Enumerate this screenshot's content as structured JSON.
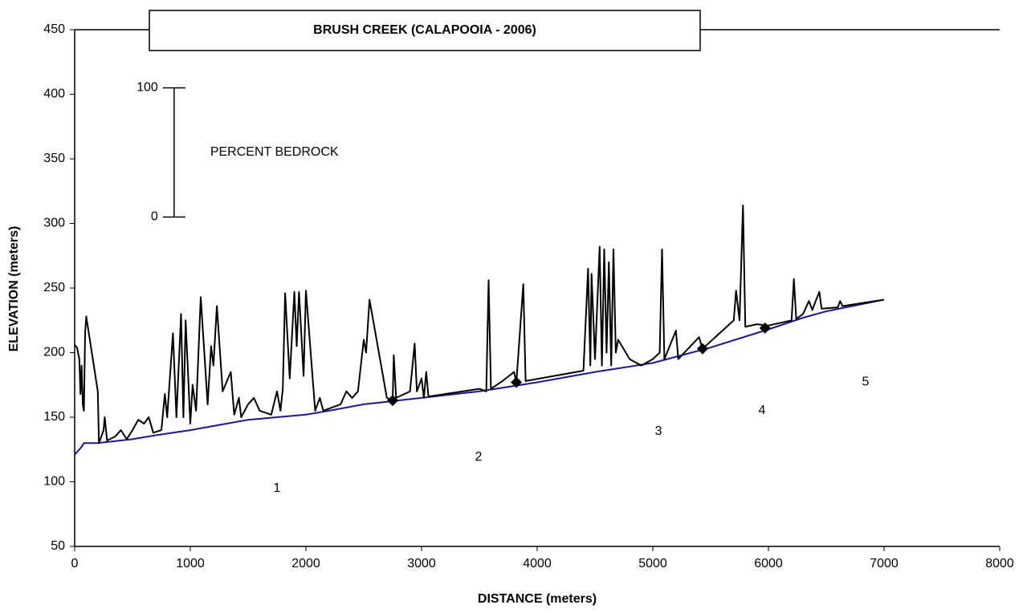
{
  "chart_data": {
    "type": "line",
    "title": "BRUSH CREEK (CALAPOOIA - 2006)",
    "xlabel": "DISTANCE (meters)",
    "ylabel": "ELEVATION (meters)",
    "xlim": [
      0,
      8000
    ],
    "xticks": [
      0,
      1000,
      2000,
      3000,
      4000,
      5000,
      6000,
      7000,
      8000
    ],
    "ylim": [
      50,
      450
    ],
    "yticks": [
      50,
      100,
      150,
      200,
      250,
      300,
      350,
      400,
      450
    ],
    "grid": false,
    "series": [
      {
        "color": "#000000",
        "x": [
          0,
          20,
          40,
          50,
          60,
          70,
          80,
          90,
          100,
          200,
          210,
          250,
          260,
          280,
          350,
          400,
          450,
          500,
          550,
          600,
          640,
          680,
          750,
          780,
          800,
          850,
          880,
          920,
          940,
          960,
          1000,
          1020,
          1050,
          1090,
          1150,
          1180,
          1200,
          1230,
          1280,
          1350,
          1380,
          1420,
          1440,
          1500,
          1550,
          1600,
          1700,
          1750,
          1780,
          1800,
          1820,
          1860,
          1900,
          1920,
          1940,
          1980,
          2000,
          2080,
          2120,
          2150,
          2300,
          2350,
          2400,
          2450,
          2500,
          2520,
          2550,
          2700,
          2750,
          2760,
          2780,
          2900,
          2940,
          2960,
          3000,
          3020,
          3040,
          3060,
          3500,
          3560,
          3580,
          3600,
          3700,
          3800,
          3820,
          3880,
          3900,
          4400,
          4440,
          4460,
          4470,
          4500,
          4540,
          4560,
          4580,
          4600,
          4620,
          4640,
          4660,
          4680,
          4700,
          4800,
          4900,
          5000,
          5060,
          5080,
          5100,
          5200,
          5220,
          5400,
          5430,
          5700,
          5720,
          5750,
          5780,
          5800,
          5900,
          6000,
          6200,
          6220,
          6240,
          6300,
          6350,
          6380,
          6400,
          6440,
          6460,
          6600,
          6620,
          6640,
          7000
        ],
        "values": [
          206,
          204,
          195,
          168,
          190,
          160,
          155,
          215,
          228,
          170,
          130,
          140,
          150,
          132,
          135,
          140,
          133,
          140,
          148,
          145,
          150,
          138,
          140,
          168,
          150,
          215,
          150,
          230,
          150,
          225,
          145,
          175,
          155,
          243,
          160,
          205,
          190,
          236,
          170,
          185,
          152,
          165,
          150,
          160,
          165,
          155,
          152,
          170,
          155,
          172,
          246,
          180,
          247,
          205,
          247,
          182,
          248,
          155,
          165,
          155,
          160,
          170,
          165,
          170,
          210,
          200,
          241,
          165,
          163,
          198,
          165,
          170,
          207,
          170,
          180,
          165,
          185,
          166,
          172,
          170,
          256,
          172,
          178,
          185,
          177,
          253,
          178,
          186,
          265,
          190,
          261,
          195,
          282,
          190,
          280,
          200,
          270,
          190,
          280,
          200,
          210,
          195,
          190,
          195,
          200,
          280,
          195,
          217,
          195,
          212,
          203,
          225,
          248,
          225,
          314,
          220,
          222,
          221,
          225,
          257,
          226,
          230,
          240,
          233,
          238,
          247,
          234,
          235,
          240,
          236,
          241
        ]
      },
      {
        "color": "#1a1a8c",
        "x": [
          0,
          30,
          60,
          80,
          200,
          500,
          700,
          1000,
          1500,
          2000,
          2200,
          2500,
          2700,
          3000,
          3500,
          4000,
          4500,
          5000,
          5500,
          6000,
          6300,
          6500,
          7000
        ],
        "values": [
          121,
          124,
          127,
          130,
          130,
          133,
          136,
          140,
          148,
          152,
          155,
          160,
          162,
          165,
          170,
          177,
          185,
          192,
          204,
          218,
          227,
          232,
          241
        ]
      }
    ],
    "markers": {
      "color": "#000000",
      "x": [
        2750,
        3820,
        5430,
        5970
      ],
      "values": [
        163,
        177,
        203,
        219
      ]
    },
    "annotations": [
      {
        "text": "1",
        "x": 1750,
        "y": 95
      },
      {
        "text": "2",
        "x": 3493,
        "y": 119
      },
      {
        "text": "3",
        "x": 5049,
        "y": 139
      },
      {
        "text": "4",
        "x": 5944,
        "y": 155
      },
      {
        "text": "5",
        "x": 6840,
        "y": 177
      }
    ],
    "scale_bar": {
      "label": "PERCENT BEDROCK",
      "x": 860,
      "ylim": [
        305,
        405
      ],
      "ticks": [
        0,
        100
      ]
    }
  }
}
